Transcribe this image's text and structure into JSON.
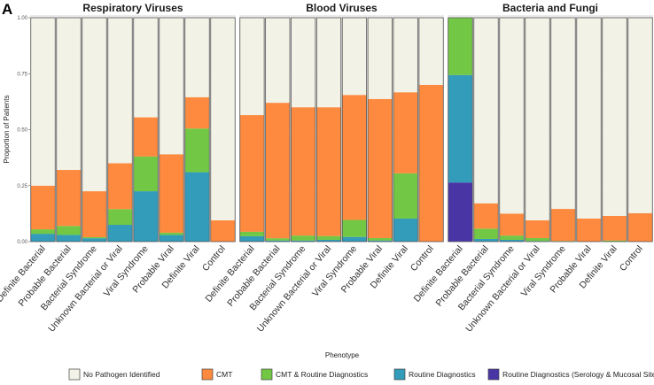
{
  "chart_data": {
    "type": "bar",
    "stacked": true,
    "panel_letter": "A",
    "ylabel": "Proportion of Patients",
    "xlabel": "Phenotype",
    "ylim": [
      0,
      1
    ],
    "yticks": [
      "0.00",
      "0.25",
      "0.50",
      "0.75",
      "1.00"
    ],
    "categories": [
      "Definite Bacterial",
      "Probable Bacterial",
      "Bacterial Syndrome",
      "Unknown Bacterial or Viral",
      "Viral Syndrome",
      "Probable Viral",
      "Definite Viral",
      "Control"
    ],
    "legend": {
      "placement": "bottom",
      "entries": [
        "No Pathogen Identified",
        "CMT",
        "CMT & Routine Diagnostics",
        "Routine Diagnostics",
        "Routine Diagnostics (Serology & Mucosal Sites)"
      ]
    },
    "series_colors": {
      "No Pathogen Identified": "#f2f2e6",
      "CMT": "#fd8a3e",
      "CMT & Routine Diagnostics": "#72c844",
      "Routine Diagnostics": "#329cba",
      "Routine Diagnostics (Serology & Mucosal Sites)": "#4a35a5"
    },
    "stack_order_bottom_to_top": [
      "Routine Diagnostics (Serology & Mucosal Sites)",
      "Routine Diagnostics",
      "CMT & Routine Diagnostics",
      "CMT",
      "No Pathogen Identified"
    ],
    "panels": [
      {
        "title": "Respiratory Viruses",
        "values": [
          [
            0,
            0.035,
            0.02,
            0.195,
            0.75
          ],
          [
            0,
            0.03,
            0.04,
            0.25,
            0.68
          ],
          [
            0,
            0.015,
            0.005,
            0.205,
            0.775
          ],
          [
            0,
            0.075,
            0.07,
            0.205,
            0.65
          ],
          [
            0,
            0.225,
            0.155,
            0.175,
            0.445
          ],
          [
            0,
            0.03,
            0.01,
            0.35,
            0.61
          ],
          [
            0,
            0.31,
            0.195,
            0.14,
            0.355
          ],
          [
            0,
            0,
            0,
            0.095,
            0.905
          ]
        ]
      },
      {
        "title": "Blood Viruses",
        "values": [
          [
            0,
            0.024,
            0.02,
            0.521,
            0.435
          ],
          [
            0,
            0.005,
            0.01,
            0.605,
            0.38
          ],
          [
            0,
            0.005,
            0.022,
            0.573,
            0.4
          ],
          [
            0,
            0.008,
            0.017,
            0.575,
            0.4
          ],
          [
            0,
            0.021,
            0.076,
            0.558,
            0.345
          ],
          [
            0,
            0.005,
            0.011,
            0.621,
            0.363
          ],
          [
            0,
            0.103,
            0.202,
            0.362,
            0.333
          ],
          [
            0,
            0,
            0,
            0.7,
            0.3
          ]
        ]
      },
      {
        "title": "Bacteria and Fungi",
        "values": [
          [
            0.264,
            0.48,
            0.256,
            0,
            0
          ],
          [
            0,
            0.012,
            0.046,
            0.113,
            0.829
          ],
          [
            0,
            0.008,
            0.019,
            0.098,
            0.875
          ],
          [
            0,
            0.003,
            0.013,
            0.079,
            0.905
          ],
          [
            0,
            0,
            0.003,
            0.143,
            0.854
          ],
          [
            0,
            0,
            0,
            0.103,
            0.897
          ],
          [
            0,
            0,
            0.005,
            0.11,
            0.885
          ],
          [
            0,
            0,
            0,
            0.127,
            0.873
          ]
        ]
      }
    ]
  }
}
